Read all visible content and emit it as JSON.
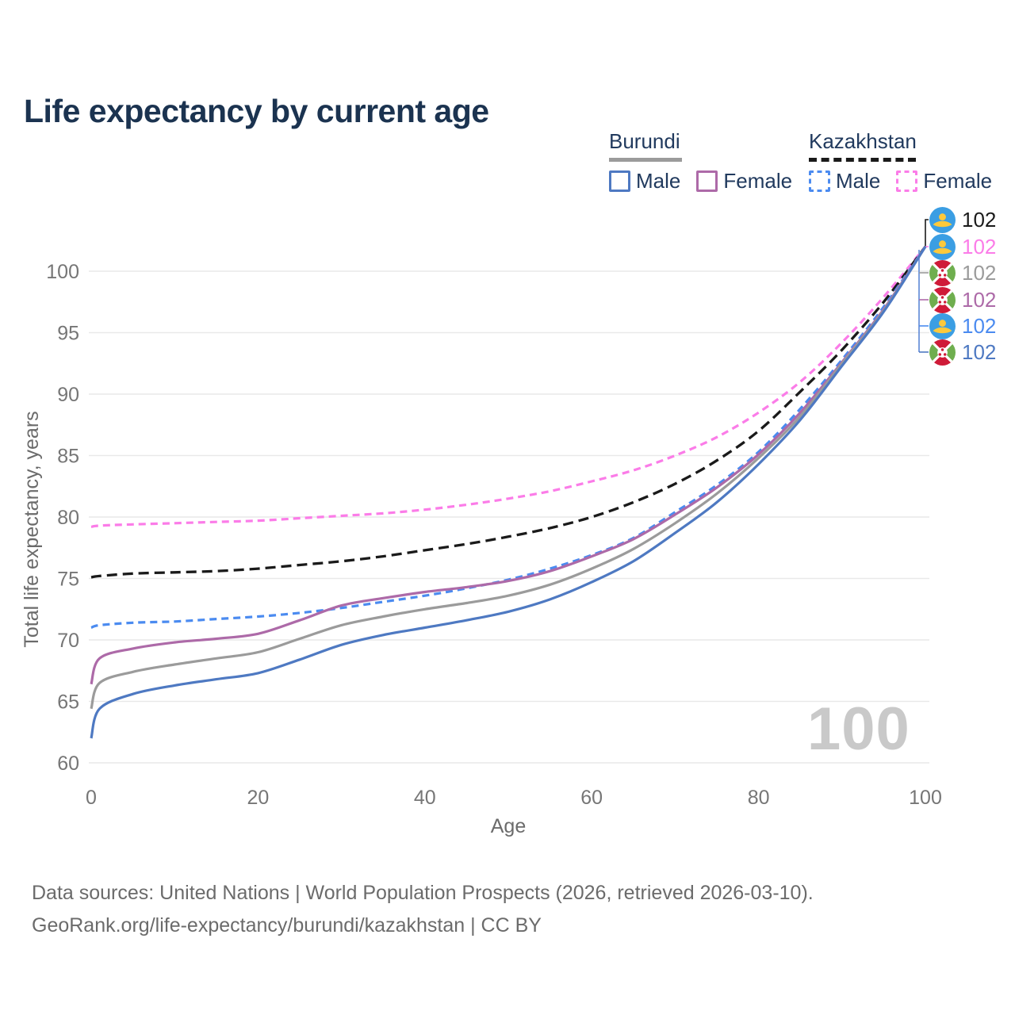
{
  "title": "Life expectancy by current age",
  "watermark": "100",
  "legend": {
    "groups": [
      {
        "country": "Burundi",
        "line_style": "solid",
        "underline_color": "#9b9b9b",
        "items": [
          {
            "label": "Male",
            "color": "#4e79c2",
            "dashed": false
          },
          {
            "label": "Female",
            "color": "#ad6aa8",
            "dashed": false
          }
        ]
      },
      {
        "country": "Kazakhstan",
        "line_style": "dashed",
        "underline_color": "#1a1a1a",
        "items": [
          {
            "label": "Male",
            "color": "#4b8bf0",
            "dashed": true
          },
          {
            "label": "Female",
            "color": "#fb7ce8",
            "dashed": true
          }
        ]
      }
    ]
  },
  "end_labels": [
    {
      "flag": "kazakhstan",
      "series": "Kazakhstan Both sexes",
      "value": "102",
      "color": "#1a1a1a"
    },
    {
      "flag": "kazakhstan",
      "series": "Kazakhstan Female",
      "value": "102",
      "color": "#fb7ce8"
    },
    {
      "flag": "burundi",
      "series": "Burundi Both sexes",
      "value": "102",
      "color": "#9b9b9b"
    },
    {
      "flag": "burundi",
      "series": "Burundi Female",
      "value": "102",
      "color": "#ad6aa8"
    },
    {
      "flag": "kazakhstan",
      "series": "Kazakhstan Male",
      "value": "102",
      "color": "#4b8bf0"
    },
    {
      "flag": "burundi",
      "series": "Burundi Male",
      "value": "102",
      "color": "#4e79c2"
    }
  ],
  "footer": {
    "line1": "Data sources: United Nations | World Population Prospects (2026, retrieved 2026-03-10).",
    "line2": "GeoRank.org/life-expectancy/burundi/kazakhstan | CC BY"
  },
  "chart_data": {
    "type": "line",
    "title": "Life expectancy by current age",
    "xlabel": "Age",
    "ylabel": "Total life expectancy, years",
    "xlim": [
      0,
      100
    ],
    "ylim": [
      60,
      103
    ],
    "xticks": [
      0,
      20,
      40,
      60,
      80,
      100
    ],
    "yticks": [
      60,
      65,
      70,
      75,
      80,
      85,
      90,
      95,
      100
    ],
    "grid": "horizontal",
    "legend_position": "top-right",
    "x": [
      0,
      1,
      5,
      10,
      15,
      20,
      25,
      30,
      35,
      40,
      45,
      50,
      55,
      60,
      65,
      70,
      75,
      80,
      85,
      90,
      95,
      100
    ],
    "series": [
      {
        "name": "Kazakhstan Female",
        "country": "Kazakhstan",
        "sex": "female",
        "color": "#fb7ce8",
        "dash": "9 6",
        "width": 3.2,
        "values": [
          79.2,
          79.3,
          79.4,
          79.5,
          79.6,
          79.7,
          79.9,
          80.1,
          80.3,
          80.6,
          81.0,
          81.5,
          82.1,
          82.9,
          83.8,
          85.0,
          86.5,
          88.5,
          91.0,
          94.2,
          97.9,
          102
        ]
      },
      {
        "name": "Kazakhstan Both sexes",
        "country": "Kazakhstan",
        "sex": "both",
        "color": "#1a1a1a",
        "dash": "13 7",
        "width": 3.3,
        "values": [
          75.1,
          75.2,
          75.4,
          75.5,
          75.6,
          75.8,
          76.1,
          76.4,
          76.8,
          77.3,
          77.8,
          78.4,
          79.1,
          80.0,
          81.2,
          82.7,
          84.6,
          87.0,
          90.2,
          93.6,
          97.5,
          102
        ]
      },
      {
        "name": "Kazakhstan Male",
        "country": "Kazakhstan",
        "sex": "male",
        "color": "#4b8bf0",
        "dash": "9 6",
        "width": 3.2,
        "values": [
          71.0,
          71.2,
          71.4,
          71.5,
          71.7,
          71.9,
          72.2,
          72.6,
          73.1,
          73.6,
          74.2,
          74.9,
          75.8,
          76.9,
          78.3,
          80.4,
          82.6,
          85.3,
          88.8,
          92.8,
          97.1,
          102
        ]
      },
      {
        "name": "Burundi Female",
        "country": "Burundi",
        "sex": "female",
        "color": "#ad6aa8",
        "dash": null,
        "width": 3.2,
        "values": [
          66.4,
          68.5,
          69.3,
          69.8,
          70.1,
          70.5,
          71.6,
          72.8,
          73.4,
          73.9,
          74.3,
          74.8,
          75.6,
          76.8,
          78.2,
          80.2,
          82.4,
          85.1,
          88.5,
          92.6,
          96.9,
          102
        ]
      },
      {
        "name": "Burundi Both sexes",
        "country": "Burundi",
        "sex": "both",
        "color": "#9b9b9b",
        "dash": null,
        "width": 3.2,
        "values": [
          64.4,
          66.5,
          67.4,
          68.0,
          68.5,
          69.0,
          70.1,
          71.2,
          71.9,
          72.5,
          73.0,
          73.6,
          74.5,
          75.8,
          77.4,
          79.5,
          81.9,
          84.8,
          88.2,
          92.5,
          96.8,
          102
        ]
      },
      {
        "name": "Burundi Male",
        "country": "Burundi",
        "sex": "male",
        "color": "#4e79c2",
        "dash": null,
        "width": 3.2,
        "values": [
          62.0,
          64.4,
          65.6,
          66.3,
          66.8,
          67.3,
          68.4,
          69.6,
          70.4,
          71.0,
          71.6,
          72.3,
          73.3,
          74.7,
          76.4,
          78.7,
          81.2,
          84.3,
          87.9,
          92.3,
          96.7,
          102
        ]
      }
    ]
  }
}
